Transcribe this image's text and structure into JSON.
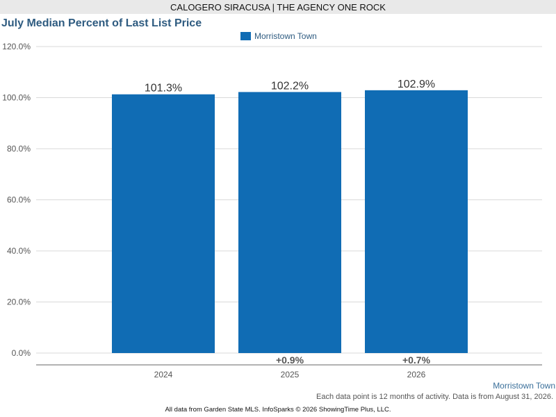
{
  "header": {
    "agent": "CALOGERO SIRACUSA | THE AGENCY ONE ROCK"
  },
  "chart_data": {
    "type": "bar",
    "title": "July Median Percent of Last List Price",
    "categories": [
      "2024",
      "2025",
      "2026"
    ],
    "series": [
      {
        "name": "Morristown Town",
        "values": [
          101.3,
          102.2,
          102.9
        ],
        "color": "#106cb4"
      }
    ],
    "data_labels": [
      "101.3%",
      "102.2%",
      "102.9%"
    ],
    "change_labels": [
      "",
      "+0.9%",
      "+0.7%"
    ],
    "y_ticks": [
      "0.0%",
      "20.0%",
      "40.0%",
      "60.0%",
      "80.0%",
      "100.0%",
      "120.0%"
    ],
    "ylim": [
      0,
      120
    ],
    "grid": true,
    "legend": "top-center"
  },
  "footer": {
    "series_label": "Morristown Town",
    "note": "Each data point is 12 months of activity. Data is from August 31, 2026.",
    "credit": "All data from Garden State MLS. InfoSparks © 2026 ShowingTime Plus, LLC."
  }
}
